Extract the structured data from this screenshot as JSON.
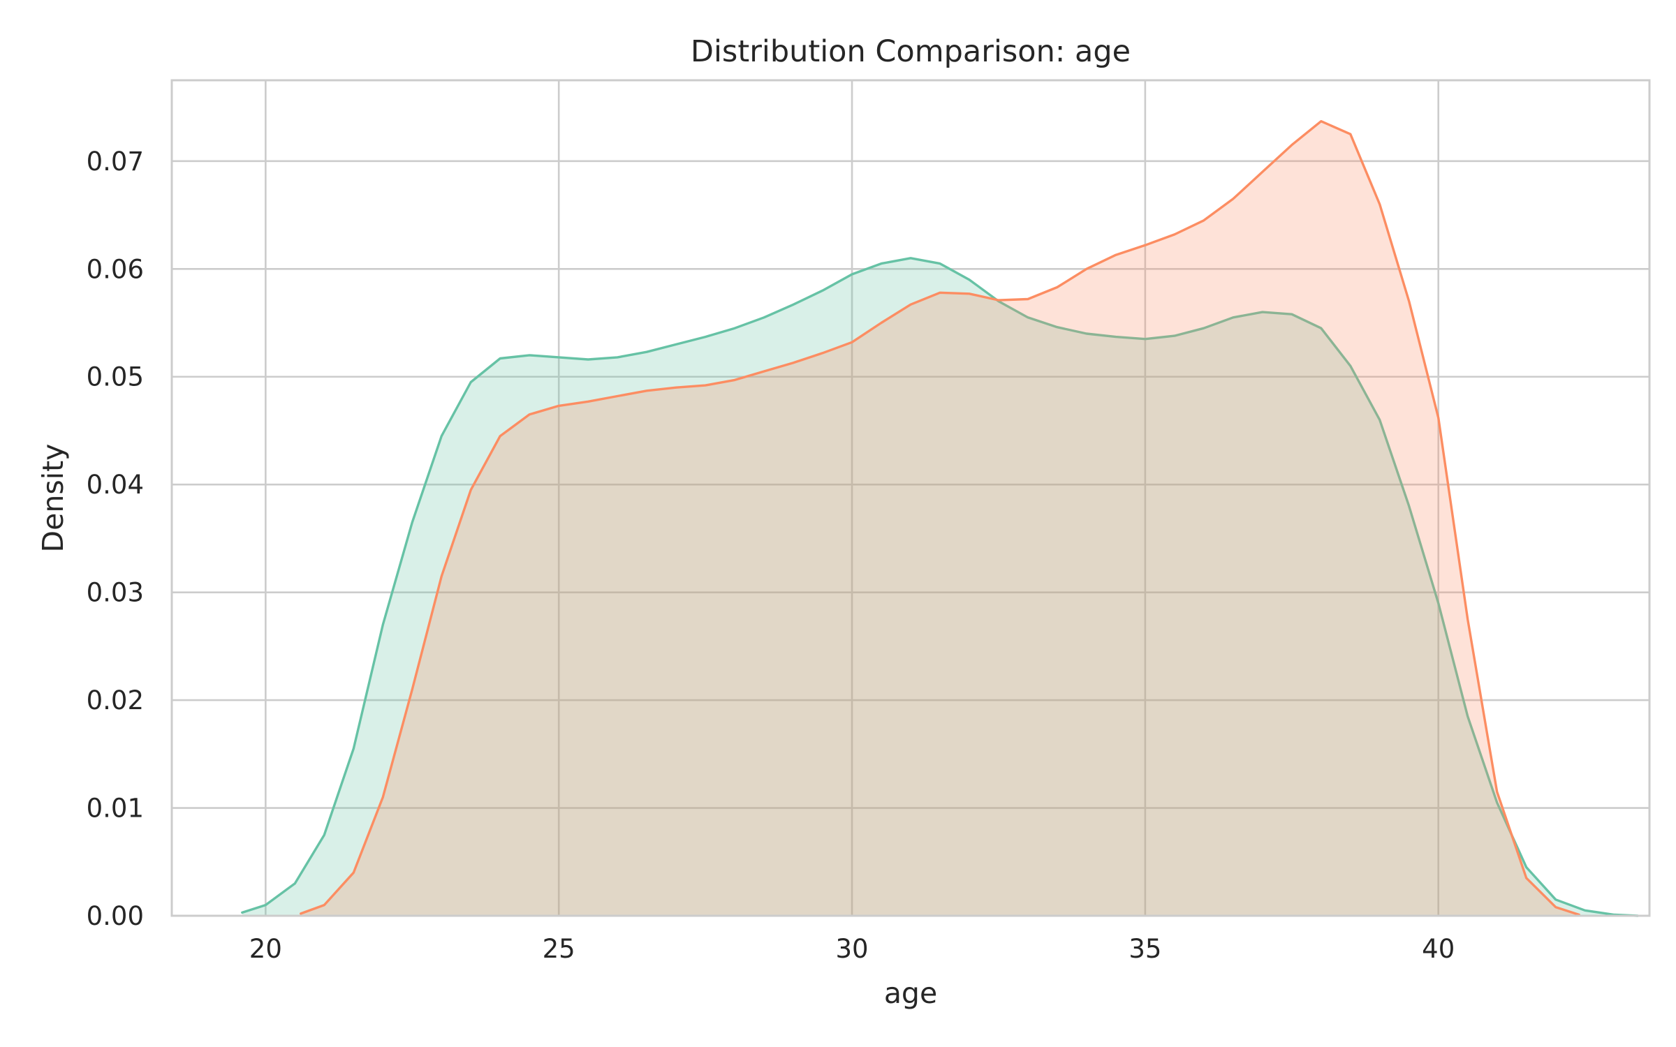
{
  "chart_data": {
    "type": "area",
    "title": "Distribution Comparison: age",
    "xlabel": "age",
    "ylabel": "Density",
    "xlim": [
      18.4,
      43.6
    ],
    "ylim": [
      0.0,
      0.0775
    ],
    "xticks": [
      20,
      25,
      30,
      35,
      40
    ],
    "yticks": [
      0.0,
      0.01,
      0.02,
      0.03,
      0.04,
      0.05,
      0.06,
      0.07
    ],
    "xtick_labels": [
      "20",
      "25",
      "30",
      "35",
      "40"
    ],
    "ytick_labels": [
      "0.00",
      "0.01",
      "0.02",
      "0.03",
      "0.04",
      "0.05",
      "0.06",
      "0.07"
    ],
    "grid": true,
    "legend": "none",
    "series": [
      {
        "color": "#66c2a5",
        "fill_color": "#66c2a5",
        "fill_opacity": 0.25,
        "x": [
          19.6,
          20.0,
          20.5,
          21.0,
          21.5,
          22.0,
          22.5,
          23.0,
          23.5,
          24.0,
          24.5,
          25.0,
          25.5,
          26.0,
          26.5,
          27.0,
          27.5,
          28.0,
          28.5,
          29.0,
          29.5,
          30.0,
          30.5,
          31.0,
          31.5,
          32.0,
          32.5,
          33.0,
          33.5,
          34.0,
          34.5,
          35.0,
          35.5,
          36.0,
          36.5,
          37.0,
          37.5,
          38.0,
          38.5,
          39.0,
          39.5,
          40.0,
          40.5,
          41.0,
          41.5,
          42.0,
          42.5,
          43.0,
          43.4
        ],
        "y": [
          0.0003,
          0.001,
          0.003,
          0.0075,
          0.0155,
          0.027,
          0.0365,
          0.0445,
          0.0495,
          0.0517,
          0.052,
          0.0518,
          0.0516,
          0.0518,
          0.0523,
          0.053,
          0.0537,
          0.0545,
          0.0555,
          0.0567,
          0.058,
          0.0595,
          0.0605,
          0.061,
          0.0605,
          0.059,
          0.057,
          0.0555,
          0.0546,
          0.054,
          0.0537,
          0.0535,
          0.0538,
          0.0545,
          0.0555,
          0.056,
          0.0558,
          0.0545,
          0.051,
          0.046,
          0.038,
          0.029,
          0.0185,
          0.0105,
          0.0045,
          0.0015,
          0.0005,
          0.0001,
          0.0
        ]
      },
      {
        "color": "#fc8d62",
        "fill_color": "#fc8d62",
        "fill_opacity": 0.25,
        "x": [
          20.6,
          21.0,
          21.5,
          22.0,
          22.5,
          23.0,
          23.5,
          24.0,
          24.5,
          25.0,
          25.5,
          26.0,
          26.5,
          27.0,
          27.5,
          28.0,
          28.5,
          29.0,
          29.5,
          30.0,
          30.5,
          31.0,
          31.5,
          32.0,
          32.5,
          33.0,
          33.5,
          34.0,
          34.5,
          35.0,
          35.5,
          36.0,
          36.5,
          37.0,
          37.5,
          38.0,
          38.5,
          39.0,
          39.5,
          40.0,
          40.5,
          41.0,
          41.5,
          42.0,
          42.4
        ],
        "y": [
          0.0002,
          0.001,
          0.004,
          0.011,
          0.021,
          0.0315,
          0.0395,
          0.0445,
          0.0465,
          0.0473,
          0.0477,
          0.0482,
          0.0487,
          0.049,
          0.0492,
          0.0497,
          0.0505,
          0.0513,
          0.0522,
          0.0532,
          0.055,
          0.0567,
          0.0578,
          0.0577,
          0.0571,
          0.0572,
          0.0583,
          0.06,
          0.0613,
          0.0622,
          0.0632,
          0.0645,
          0.0665,
          0.069,
          0.0715,
          0.0737,
          0.0725,
          0.066,
          0.057,
          0.0462,
          0.0275,
          0.0115,
          0.0035,
          0.0008,
          0.0001
        ]
      }
    ]
  },
  "styles": {
    "axes_edge": "#cccccc",
    "grid": "#cccccc",
    "text": "#262626",
    "background": "#ffffff"
  }
}
